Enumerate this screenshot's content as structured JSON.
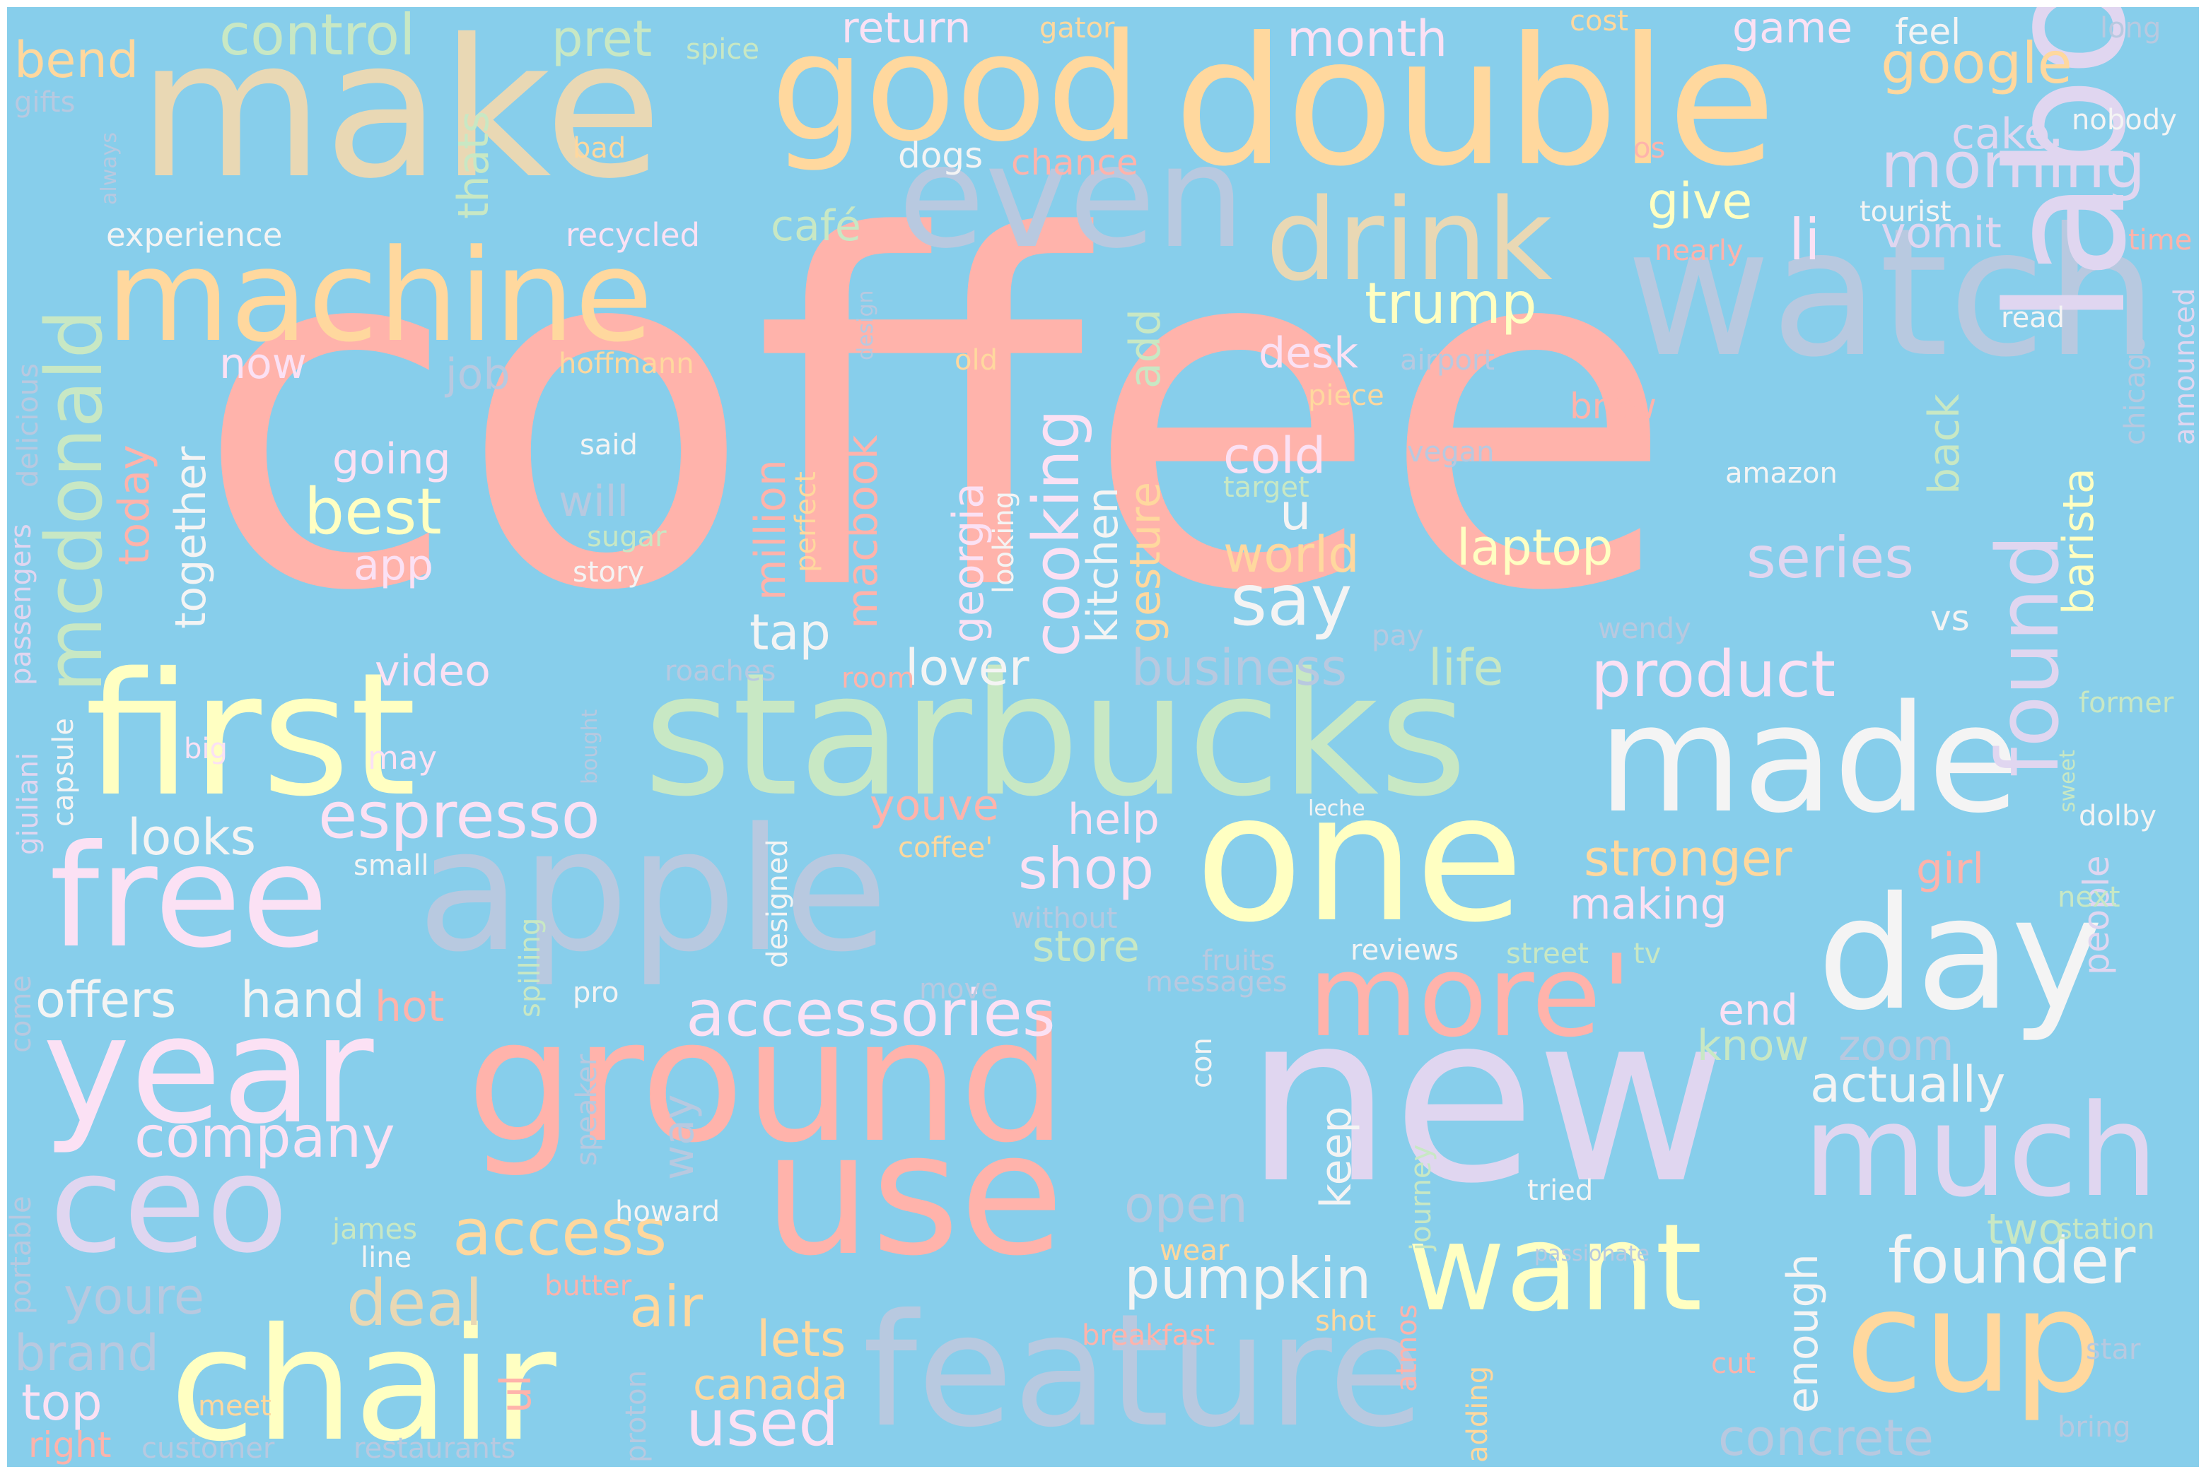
{
  "colors": {
    "background": "#87ceeb",
    "palette": [
      "#ffb3ab",
      "#ffd89e",
      "#ffffc2",
      "#c8e8c4",
      "#e0d6f0",
      "#f4d4ee",
      "#fbe1f4",
      "#e9d8b4",
      "#b8c9e0",
      "#f4f4f4"
    ]
  },
  "words": [
    {
      "text": "coffee",
      "color": "#ffb3ab"
    },
    {
      "text": "make",
      "color": "#e9d8b4"
    },
    {
      "text": "double",
      "color": "#ffd89e"
    },
    {
      "text": "good",
      "color": "#ffd89e"
    },
    {
      "text": "watch",
      "color": "#b8c9e0"
    },
    {
      "text": "even",
      "color": "#b8c9e0"
    },
    {
      "text": "machine",
      "color": "#ffd89e"
    },
    {
      "text": "drink",
      "color": "#e9d8b4"
    },
    {
      "text": "first",
      "color": "#ffffc2"
    },
    {
      "text": "starbucks",
      "color": "#c8e8c4"
    },
    {
      "text": "made",
      "color": "#f4f4f4"
    },
    {
      "text": "labor",
      "color": "#e0d6f0"
    },
    {
      "text": "one",
      "color": "#ffffc2"
    },
    {
      "text": "apple",
      "color": "#b8c9e0"
    },
    {
      "text": "free",
      "color": "#fbe1f4"
    },
    {
      "text": "day",
      "color": "#f4f4f4"
    },
    {
      "text": "more'",
      "color": "#ffb3ab"
    },
    {
      "text": "year",
      "color": "#fbe1f4"
    },
    {
      "text": "ground",
      "color": "#ffb3ab"
    },
    {
      "text": "new",
      "color": "#e0d6f0"
    },
    {
      "text": "much",
      "color": "#e0d6f0"
    },
    {
      "text": "use",
      "color": "#ffb3ab"
    },
    {
      "text": "ceo",
      "color": "#e0d6f0"
    },
    {
      "text": "want",
      "color": "#ffffc2"
    },
    {
      "text": "cup",
      "color": "#ffd89e"
    },
    {
      "text": "chair",
      "color": "#ffffc2"
    },
    {
      "text": "feature",
      "color": "#b8c9e0"
    },
    {
      "text": "mcdonald",
      "color": "#c8e8c4"
    },
    {
      "text": "found",
      "color": "#e0d6f0"
    },
    {
      "text": "cooking",
      "color": "#fbe1f4"
    },
    {
      "text": "espresso",
      "color": "#fbe1f4"
    },
    {
      "text": "accessories",
      "color": "#fbe1f4"
    },
    {
      "text": "company",
      "color": "#fbe1f4"
    },
    {
      "text": "pumpkin",
      "color": "#f4f4f4"
    },
    {
      "text": "founder",
      "color": "#f4f4f4"
    },
    {
      "text": "product",
      "color": "#fbe1f4"
    },
    {
      "text": "trump",
      "color": "#ffffc2"
    },
    {
      "text": "google",
      "color": "#ffd89e"
    },
    {
      "text": "morning",
      "color": "#e0d6f0"
    },
    {
      "text": "control",
      "color": "#c8e8c4"
    },
    {
      "text": "month",
      "color": "#fbe1f4"
    },
    {
      "text": "best",
      "color": "#ffffc2"
    },
    {
      "text": "laptop",
      "color": "#ffffc2"
    },
    {
      "text": "series",
      "color": "#e0d6f0"
    },
    {
      "text": "say",
      "color": "#f4f4f4"
    },
    {
      "text": "access",
      "color": "#ffd89e"
    },
    {
      "text": "deal",
      "color": "#e9d8b4"
    },
    {
      "text": "air",
      "color": "#ffd89e"
    },
    {
      "text": "lets",
      "color": "#ffd89e"
    },
    {
      "text": "used",
      "color": "#fbe1f4"
    },
    {
      "text": "canada",
      "color": "#ffd89e"
    },
    {
      "text": "top",
      "color": "#fbe1f4"
    },
    {
      "text": "brand",
      "color": "#b8c9e0"
    },
    {
      "text": "youre",
      "color": "#b8c9e0"
    },
    {
      "text": "offers",
      "color": "#f4f4f4"
    },
    {
      "text": "hand",
      "color": "#f4f4f4"
    },
    {
      "text": "looks",
      "color": "#f4f4f4"
    },
    {
      "text": "video",
      "color": "#fbe1f4"
    },
    {
      "text": "together",
      "color": "#f4f4f4"
    },
    {
      "text": "going",
      "color": "#fbe1f4"
    },
    {
      "text": "shop",
      "color": "#fbe1f4"
    },
    {
      "text": "help",
      "color": "#fbe1f4"
    },
    {
      "text": "store",
      "color": "#c8e8c4"
    },
    {
      "text": "making",
      "color": "#fbe1f4"
    },
    {
      "text": "stronger",
      "color": "#ffd89e"
    },
    {
      "text": "girl",
      "color": "#ffb3ab"
    },
    {
      "text": "actually",
      "color": "#f4f4f4"
    },
    {
      "text": "know",
      "color": "#c8e8c4"
    },
    {
      "text": "end",
      "color": "#fbe1f4"
    },
    {
      "text": "zoom",
      "color": "#b8c9e0"
    },
    {
      "text": "two",
      "color": "#c8e8c4"
    },
    {
      "text": "enough",
      "color": "#f4f4f4"
    },
    {
      "text": "concrete",
      "color": "#b8c9e0"
    },
    {
      "text": "keep",
      "color": "#f4f4f4"
    },
    {
      "text": "open",
      "color": "#b8c9e0"
    },
    {
      "text": "journey",
      "color": "#c8e8c4"
    },
    {
      "text": "business",
      "color": "#b8c9e0"
    },
    {
      "text": "life",
      "color": "#c8e8c4"
    },
    {
      "text": "lover",
      "color": "#f4f4f4"
    },
    {
      "text": "tap",
      "color": "#f4f4f4"
    },
    {
      "text": "world",
      "color": "#ffd89e"
    },
    {
      "text": "cold",
      "color": "#fbe1f4"
    },
    {
      "text": "desk",
      "color": "#fbe1f4"
    },
    {
      "text": "give",
      "color": "#ffffc2"
    },
    {
      "text": "li",
      "color": "#fbe1f4"
    },
    {
      "text": "vomit",
      "color": "#e0d6f0"
    },
    {
      "text": "café",
      "color": "#c8e8c4"
    },
    {
      "text": "cake",
      "color": "#e0d6f0"
    },
    {
      "text": "game",
      "color": "#fbe1f4"
    },
    {
      "text": "feel",
      "color": "#f4f4f4"
    },
    {
      "text": "pret",
      "color": "#c8e8c4"
    },
    {
      "text": "return",
      "color": "#fbe1f4"
    },
    {
      "text": "bend",
      "color": "#ffd89e"
    },
    {
      "text": "thats",
      "color": "#c8e8c4"
    },
    {
      "text": "experience",
      "color": "#f4f4f4"
    },
    {
      "text": "recycled",
      "color": "#fbe1f4"
    },
    {
      "text": "now",
      "color": "#fbe1f4"
    },
    {
      "text": "job",
      "color": "#b8c9e0"
    },
    {
      "text": "hoffmann",
      "color": "#ffd89e"
    },
    {
      "text": "today",
      "color": "#ffb3ab"
    },
    {
      "text": "will",
      "color": "#b8c9e0"
    },
    {
      "text": "said",
      "color": "#f4f4f4"
    },
    {
      "text": "sugar",
      "color": "#c8e8c4"
    },
    {
      "text": "story",
      "color": "#f4f4f4"
    },
    {
      "text": "app",
      "color": "#fbe1f4"
    },
    {
      "text": "million",
      "color": "#ffb3ab"
    },
    {
      "text": "perfect",
      "color": "#ffd89e"
    },
    {
      "text": "macbook",
      "color": "#ffb3ab"
    },
    {
      "text": "georgia",
      "color": "#fbe1f4"
    },
    {
      "text": "looking",
      "color": "#f4f4f4"
    },
    {
      "text": "kitchen",
      "color": "#f4f4f4"
    },
    {
      "text": "gesture",
      "color": "#ffd89e"
    },
    {
      "text": "add",
      "color": "#c8e8c4"
    },
    {
      "text": "u",
      "color": "#f4f4f4"
    },
    {
      "text": "vs",
      "color": "#f4f4f4"
    },
    {
      "text": "back",
      "color": "#c8e8c4"
    },
    {
      "text": "barista",
      "color": "#ffffc2"
    },
    {
      "text": "people",
      "color": "#e0d6f0"
    },
    {
      "text": "chicago",
      "color": "#b8c9e0"
    },
    {
      "text": "announced",
      "color": "#e0d6f0"
    },
    {
      "text": "amazon",
      "color": "#f4f4f4"
    },
    {
      "text": "vegan",
      "color": "#b8c9e0"
    },
    {
      "text": "target",
      "color": "#c8e8c4"
    },
    {
      "text": "pay",
      "color": "#b8c9e0"
    },
    {
      "text": "wendy",
      "color": "#b8c9e0"
    },
    {
      "text": "brew",
      "color": "#ffb3ab"
    },
    {
      "text": "piece",
      "color": "#ffd89e"
    },
    {
      "text": "airport",
      "color": "#b8c9e0"
    },
    {
      "text": "old",
      "color": "#ffd89e"
    },
    {
      "text": "design",
      "color": "#b8c9e0"
    },
    {
      "text": "nearly",
      "color": "#ffb3ab"
    },
    {
      "text": "tourist",
      "color": "#f4f4f4"
    },
    {
      "text": "time",
      "color": "#ffb3ab"
    },
    {
      "text": "read",
      "color": "#f4f4f4"
    },
    {
      "text": "nobody",
      "color": "#f4f4f4"
    },
    {
      "text": "long",
      "color": "#b8c9e0"
    },
    {
      "text": "cost",
      "color": "#ffd89e"
    },
    {
      "text": "gator",
      "color": "#ffd89e"
    },
    {
      "text": "spice",
      "color": "#c8e8c4"
    },
    {
      "text": "gifts",
      "color": "#b8c9e0"
    },
    {
      "text": "always",
      "color": "#b8c9e0"
    },
    {
      "text": "bad",
      "color": "#ffd89e"
    },
    {
      "text": "dogs",
      "color": "#f4f4f4"
    },
    {
      "text": "chance",
      "color": "#ffb3ab"
    },
    {
      "text": "os",
      "color": "#ffb3ab"
    },
    {
      "text": "delicious",
      "color": "#b8c9e0"
    },
    {
      "text": "passengers",
      "color": "#e0d6f0"
    },
    {
      "text": "giuliani",
      "color": "#e0d6f0"
    },
    {
      "text": "capsule",
      "color": "#f4f4f4"
    },
    {
      "text": "big",
      "color": "#fbe1f4"
    },
    {
      "text": "may",
      "color": "#fbe1f4"
    },
    {
      "text": "bought",
      "color": "#b8c9e0"
    },
    {
      "text": "roaches",
      "color": "#b8c9e0"
    },
    {
      "text": "room",
      "color": "#ffb3ab"
    },
    {
      "text": "youve",
      "color": "#ffb3ab"
    },
    {
      "text": "coffee'",
      "color": "#ffd89e"
    },
    {
      "text": "leche",
      "color": "#f4f4f4"
    },
    {
      "text": "without",
      "color": "#b8c9e0"
    },
    {
      "text": "fruits",
      "color": "#b8c9e0"
    },
    {
      "text": "reviews",
      "color": "#f4f4f4"
    },
    {
      "text": "street",
      "color": "#c8e8c4"
    },
    {
      "text": "tv",
      "color": "#c8e8c4"
    },
    {
      "text": "former",
      "color": "#c8e8c4"
    },
    {
      "text": "sweet",
      "color": "#c8e8c4"
    },
    {
      "text": "dolby",
      "color": "#f4f4f4"
    },
    {
      "text": "next",
      "color": "#c8e8c4"
    },
    {
      "text": "small",
      "color": "#f4f4f4"
    },
    {
      "text": "designed",
      "color": "#f4f4f4"
    },
    {
      "text": "spilling",
      "color": "#c8e8c4"
    },
    {
      "text": "hot",
      "color": "#ffb3ab"
    },
    {
      "text": "pro",
      "color": "#f4f4f4"
    },
    {
      "text": "move",
      "color": "#b8c9e0"
    },
    {
      "text": "messages",
      "color": "#b8c9e0"
    },
    {
      "text": "way",
      "color": "#b8c9e0"
    },
    {
      "text": "con",
      "color": "#f4f4f4"
    },
    {
      "text": "speaker",
      "color": "#b8c9e0"
    },
    {
      "text": "howard",
      "color": "#f4f4f4"
    },
    {
      "text": "tried",
      "color": "#f4f4f4"
    },
    {
      "text": "station",
      "color": "#c8e8c4"
    },
    {
      "text": "passionate",
      "color": "#b8c9e0"
    },
    {
      "text": "wear",
      "color": "#ffd89e"
    },
    {
      "text": "james",
      "color": "#c8e8c4"
    },
    {
      "text": "line",
      "color": "#f4f4f4"
    },
    {
      "text": "butter",
      "color": "#ffb3ab"
    },
    {
      "text": "portable",
      "color": "#b8c9e0"
    },
    {
      "text": "come",
      "color": "#b8c9e0"
    },
    {
      "text": "shot",
      "color": "#ffd89e"
    },
    {
      "text": "breakfast",
      "color": "#ffb3ab"
    },
    {
      "text": "atmos",
      "color": "#ffb3ab"
    },
    {
      "text": "adding",
      "color": "#ffd89e"
    },
    {
      "text": "ul",
      "color": "#ffb3ab"
    },
    {
      "text": "proton",
      "color": "#b8c9e0"
    },
    {
      "text": "meet",
      "color": "#ffd89e"
    },
    {
      "text": "right",
      "color": "#ffb3ab"
    },
    {
      "text": "customer",
      "color": "#b8c9e0"
    },
    {
      "text": "restaurants",
      "color": "#b8c9e0"
    },
    {
      "text": "cut",
      "color": "#ffb3ab"
    },
    {
      "text": "star",
      "color": "#b8c9e0"
    },
    {
      "text": "bring",
      "color": "#b8c9e0"
    }
  ]
}
